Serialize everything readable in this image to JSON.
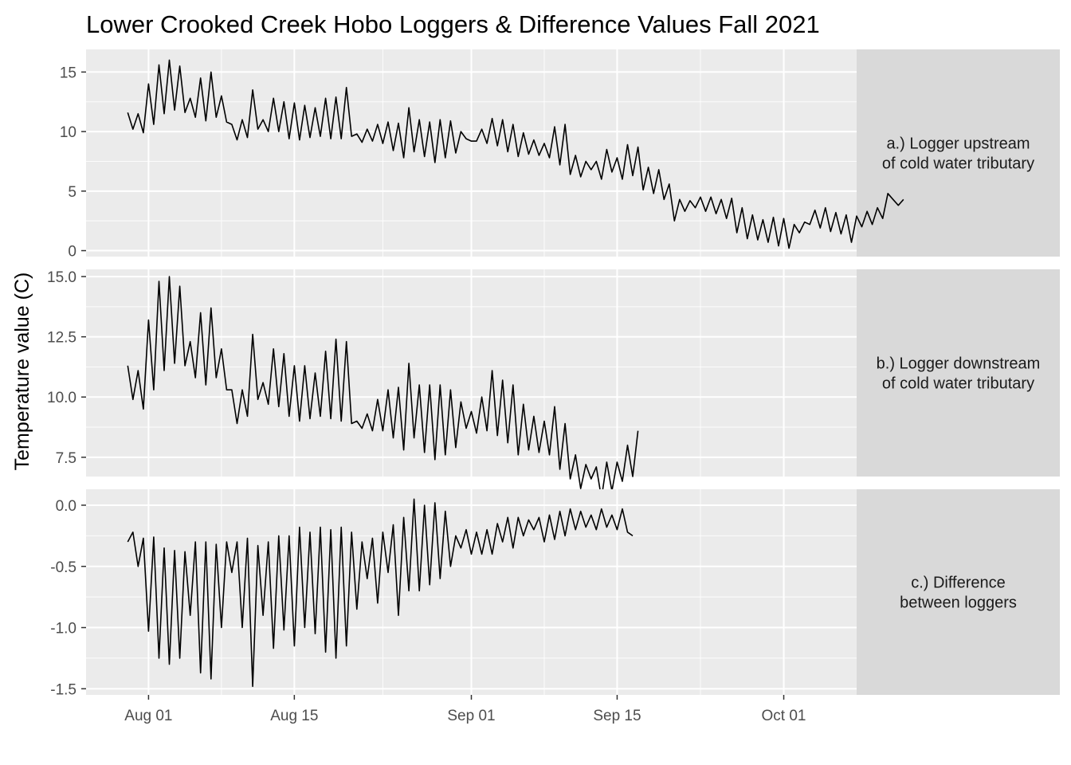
{
  "chart_data": {
    "type": "line",
    "title": "Lower Crooked Creek Hobo Loggers & Difference Values Fall 2021",
    "xlabel": "",
    "ylabel": "Temperature value (C)",
    "grid": true,
    "legend": "none",
    "x_axis": {
      "type": "date",
      "range": [
        "2021-07-26",
        "2021-10-08"
      ],
      "ticks": [
        {
          "date": "2021-08-01",
          "label": "Aug 01"
        },
        {
          "date": "2021-08-15",
          "label": "Aug 15"
        },
        {
          "date": "2021-09-01",
          "label": "Sep 01"
        },
        {
          "date": "2021-09-15",
          "label": "Sep 15"
        },
        {
          "date": "2021-10-01",
          "label": "Oct 01"
        }
      ]
    },
    "panels": [
      {
        "strip": [
          "a.) Logger upstream",
          "of cold water tributary"
        ],
        "ylim": [
          -0.5,
          16.9
        ],
        "yticks": [
          {
            "v": 0,
            "label": "0"
          },
          {
            "v": 5,
            "label": "5"
          },
          {
            "v": 10,
            "label": "10"
          },
          {
            "v": 15,
            "label": "15"
          }
        ],
        "yminor": [
          2.5,
          7.5,
          12.5
        ],
        "series": [
          {
            "start": "2021-07-30",
            "step_hours": 12,
            "values": [
              11.6,
              10.2,
              11.5,
              9.9,
              14.0,
              10.6,
              15.6,
              11.5,
              16.0,
              11.8,
              15.5,
              11.6,
              12.8,
              11.2,
              14.5,
              10.9,
              15.0,
              11.2,
              13.0,
              10.8,
              10.6,
              9.3,
              11.0,
              9.5,
              13.5,
              10.2,
              11.0,
              10.0,
              12.8,
              10.0,
              12.5,
              9.4,
              12.4,
              9.3,
              12.2,
              9.5,
              12.0,
              9.6,
              12.8,
              9.4,
              12.9,
              9.4,
              13.7,
              9.6,
              9.8,
              9.1,
              10.2,
              9.2,
              10.6,
              9.0,
              10.8,
              8.4,
              10.7,
              7.8,
              12.0,
              8.3,
              11.0,
              7.9,
              10.8,
              7.4,
              11.0,
              7.8,
              10.9,
              8.2,
              10.0,
              9.4,
              9.2,
              9.2,
              10.2,
              9.0,
              11.1,
              8.8,
              11.0,
              8.3,
              10.6,
              7.9,
              9.9,
              8.1,
              9.3,
              8.0,
              9.0,
              7.8,
              10.4,
              7.2,
              10.6,
              6.4,
              8.0,
              6.2,
              7.5,
              6.8,
              7.5,
              6.0,
              8.5,
              6.6,
              7.8,
              6.0,
              8.9,
              6.3,
              8.7,
              5.1,
              7.0,
              4.8,
              6.8,
              4.3,
              5.6,
              2.5,
              4.3,
              3.3,
              4.2,
              3.6,
              4.5,
              3.3,
              4.5,
              3.1,
              4.3,
              2.7,
              4.4,
              1.5,
              3.6,
              1.0,
              3.0,
              0.9,
              2.6,
              0.7,
              2.8,
              0.4,
              2.7,
              0.2,
              2.2,
              1.5,
              2.4,
              2.2,
              3.4,
              1.9,
              3.6,
              1.6,
              3.2,
              1.4,
              3.0,
              0.7,
              2.9,
              2.0,
              3.3,
              2.2,
              3.6,
              2.7,
              4.8,
              4.3,
              3.8,
              4.3
            ]
          }
        ]
      },
      {
        "strip": [
          "b.) Logger downstream",
          "of cold water tributary"
        ],
        "ylim": [
          6.7,
          15.3
        ],
        "yticks": [
          {
            "v": 7.5,
            "label": "7.5"
          },
          {
            "v": 10,
            "label": "10.0"
          },
          {
            "v": 12.5,
            "label": "12.5"
          },
          {
            "v": 15,
            "label": "15.0"
          }
        ],
        "yminor": [
          8.75,
          11.25,
          13.75
        ],
        "series": [
          {
            "start": "2021-07-30",
            "step_hours": 12,
            "values": [
              11.3,
              9.9,
              11.1,
              9.5,
              13.2,
              10.3,
              14.8,
              11.1,
              15.0,
              11.4,
              14.6,
              11.3,
              12.3,
              10.8,
              13.5,
              10.5,
              13.7,
              10.8,
              12.0,
              10.3,
              10.3,
              8.9,
              10.3,
              9.2,
              12.6,
              9.9,
              10.6,
              9.7,
              12.0,
              9.6,
              11.8,
              9.2,
              11.3,
              9.0,
              11.3,
              9.1,
              11.0,
              9.2,
              11.9,
              9.1,
              12.4,
              9.0,
              12.3,
              8.9,
              9.0,
              8.7,
              9.3,
              8.6,
              9.9,
              8.6,
              10.3,
              8.3,
              10.4,
              7.8,
              11.4,
              8.3,
              10.5,
              7.7,
              10.5,
              7.4,
              10.5,
              7.6,
              10.3,
              7.9,
              9.8,
              8.7,
              9.4,
              8.5,
              10.0,
              8.6,
              11.1,
              8.4,
              10.7,
              8.1,
              10.5,
              7.6,
              9.7,
              7.8,
              9.2,
              7.7,
              9.0,
              7.6,
              9.6,
              7.0,
              8.9,
              6.6,
              7.6,
              6.2,
              7.2,
              6.6,
              7.1,
              5.8,
              7.3,
              6.1,
              7.3,
              6.5,
              8.0,
              6.7,
              8.6
            ]
          }
        ]
      },
      {
        "strip": [
          "c.) Difference",
          "between loggers"
        ],
        "ylim": [
          -1.55,
          0.13
        ],
        "yticks": [
          {
            "v": -1.5,
            "label": "-1.5"
          },
          {
            "v": -1.0,
            "label": "-1.0"
          },
          {
            "v": -0.5,
            "label": "-0.5"
          },
          {
            "v": 0,
            "label": "0.0"
          }
        ],
        "yminor": [
          -1.25,
          -0.75,
          -0.25
        ],
        "series": [
          {
            "start": "2021-07-30",
            "step_hours": 12,
            "values": [
              -0.3,
              -0.22,
              -0.5,
              -0.27,
              -1.03,
              -0.26,
              -1.25,
              -0.35,
              -1.3,
              -0.37,
              -1.25,
              -0.38,
              -0.9,
              -0.3,
              -1.37,
              -0.3,
              -1.42,
              -0.32,
              -1.0,
              -0.3,
              -0.55,
              -0.3,
              -1.0,
              -0.27,
              -1.48,
              -0.33,
              -0.9,
              -0.3,
              -1.17,
              -0.25,
              -1.02,
              -0.25,
              -1.15,
              -0.18,
              -1.0,
              -0.22,
              -1.05,
              -0.18,
              -1.2,
              -0.2,
              -1.25,
              -0.18,
              -1.15,
              -0.22,
              -0.85,
              -0.3,
              -0.6,
              -0.27,
              -0.8,
              -0.22,
              -0.55,
              -0.16,
              -0.9,
              -0.1,
              -0.7,
              0.05,
              -0.7,
              0.0,
              -0.65,
              0.02,
              -0.6,
              -0.05,
              -0.5,
              -0.25,
              -0.35,
              -0.2,
              -0.4,
              -0.22,
              -0.4,
              -0.2,
              -0.4,
              -0.15,
              -0.3,
              -0.1,
              -0.35,
              -0.1,
              -0.25,
              -0.12,
              -0.2,
              -0.1,
              -0.3,
              -0.08,
              -0.28,
              -0.05,
              -0.25,
              -0.03,
              -0.2,
              -0.05,
              -0.18,
              -0.08,
              -0.2,
              -0.03,
              -0.18,
              -0.08,
              -0.2,
              -0.03,
              -0.22,
              -0.25
            ]
          }
        ]
      }
    ]
  }
}
